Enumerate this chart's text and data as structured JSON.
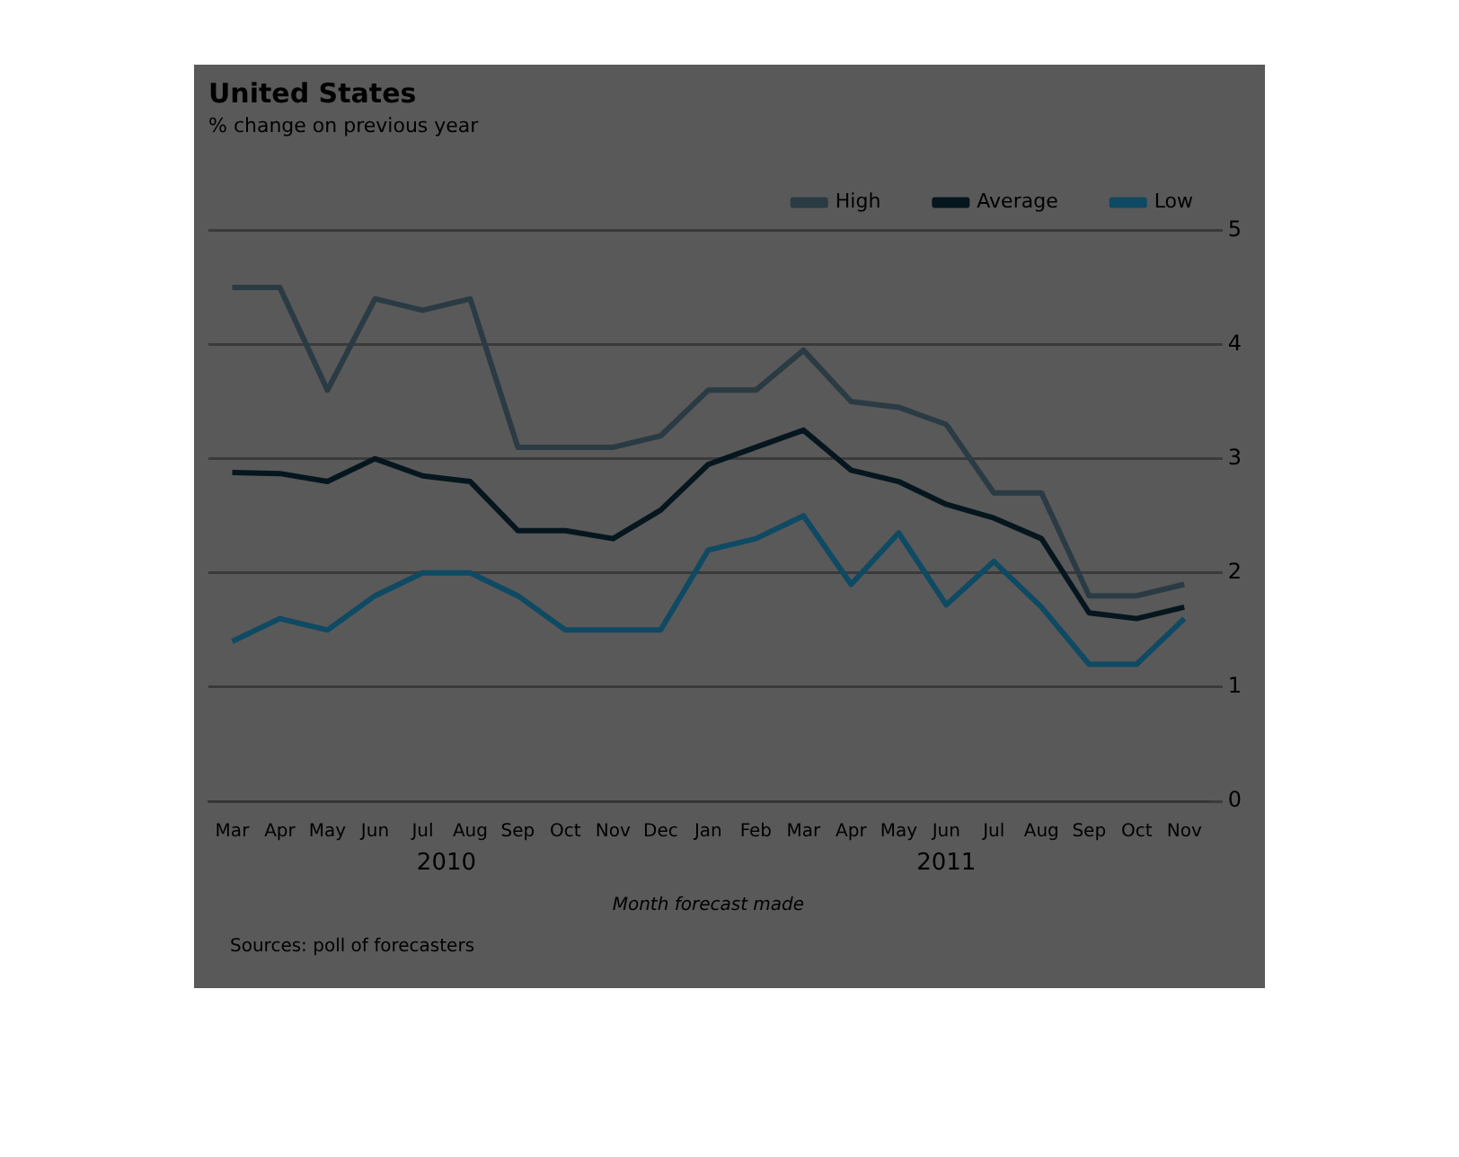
{
  "chart_data": {
    "type": "line",
    "title": "United States",
    "subtitle": "% change on previous year",
    "xlabel": "Month forecast made",
    "categories": [
      "Mar",
      "Apr",
      "May",
      "Jun",
      "Jul",
      "Aug",
      "Sep",
      "Oct",
      "Nov",
      "Dec",
      "Jan",
      "Feb",
      "Mar",
      "Apr",
      "May",
      "Jun",
      "Jul",
      "Aug",
      "Sep",
      "Oct",
      "Nov"
    ],
    "series": [
      {
        "name": "High",
        "color": "#2a3b44",
        "values": [
          4.5,
          4.5,
          3.6,
          4.4,
          4.3,
          4.4,
          3.1,
          3.1,
          3.1,
          3.2,
          3.6,
          3.6,
          3.95,
          3.5,
          3.45,
          3.3,
          2.7,
          2.7,
          1.8,
          1.8,
          1.9
        ]
      },
      {
        "name": "Average",
        "color": "#06161e",
        "values": [
          2.88,
          2.87,
          2.8,
          3.0,
          2.85,
          2.8,
          2.37,
          2.37,
          2.3,
          2.55,
          2.95,
          3.1,
          3.25,
          2.9,
          2.8,
          2.6,
          2.48,
          2.3,
          1.65,
          1.6,
          1.7
        ]
      },
      {
        "name": "Low",
        "color": "#0e4a63",
        "values": [
          1.4,
          1.6,
          1.5,
          1.8,
          2.0,
          2.0,
          1.8,
          1.5,
          1.5,
          1.5,
          2.2,
          2.3,
          2.5,
          1.9,
          2.35,
          1.72,
          2.1,
          1.7,
          1.2,
          1.2,
          1.6
        ]
      }
    ],
    "ylim": [
      0,
      5
    ],
    "yticks": [
      0,
      1,
      2,
      3,
      4,
      5
    ],
    "grid": "y",
    "legend": "top right",
    "marker": "none",
    "line_style": "solid",
    "annotations": [
      "2010",
      "2011",
      "Sources: poll of forecasters"
    ]
  }
}
